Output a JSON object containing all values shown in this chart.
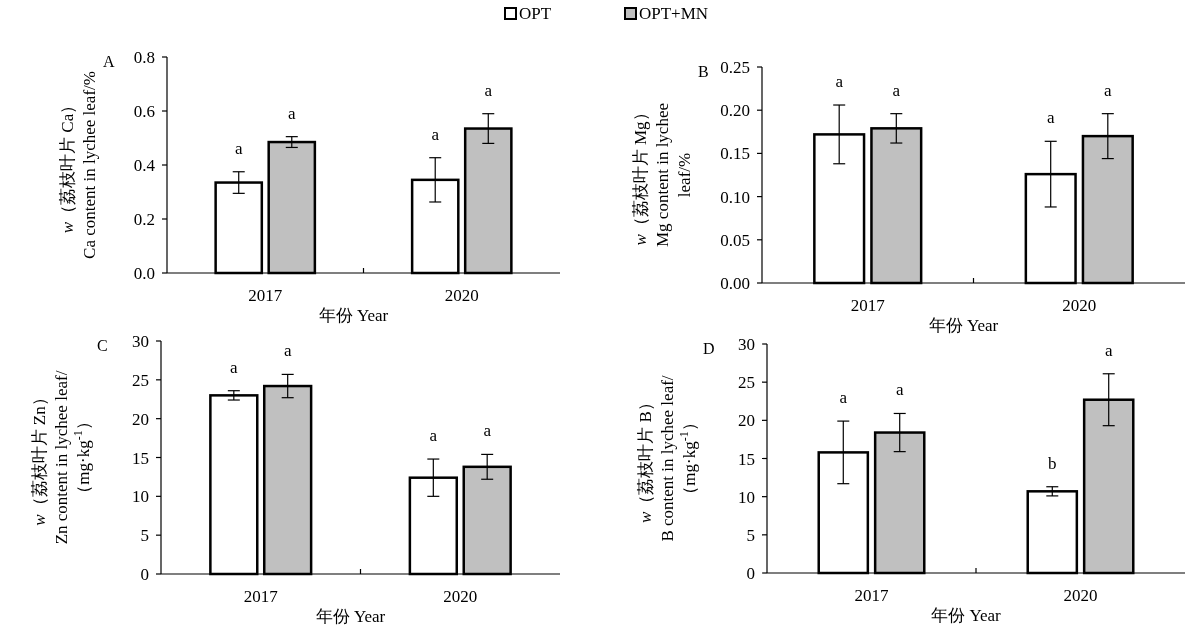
{
  "chart_data": [
    {
      "type": "bar",
      "title": "A",
      "xlabel": "年份 Year",
      "ylabel": "*w*（荔枝叶片 Ca）\nCa content in lychee leaf/%",
      "categories": [
        "2017",
        "2020"
      ],
      "ylim": [
        0,
        0.8
      ],
      "yticks": [
        {
          "value": 0,
          "label": "0.0"
        },
        {
          "value": 0.2,
          "label": "0.2"
        },
        {
          "value": 0.4,
          "label": "0.4"
        },
        {
          "value": 0.6,
          "label": "0.6"
        },
        {
          "value": 0.8,
          "label": "0.8"
        }
      ],
      "legend": "top",
      "series": [
        {
          "name": "OPT",
          "color": "#ffffff",
          "values": [
            0.335,
            0.345
          ],
          "errors": [
            0.04,
            0.082
          ],
          "value_labels": [
            "a",
            "a"
          ]
        },
        {
          "name": "OPT+MN",
          "color": "#c0c0c0",
          "values": [
            0.485,
            0.535
          ],
          "errors": [
            0.02,
            0.055
          ],
          "value_labels": [
            "a",
            "a"
          ]
        }
      ]
    },
    {
      "type": "bar",
      "title": "B",
      "xlabel": "年份 Year",
      "ylabel": "*w*（荔枝叶片 Mg）\nMg content in lychee\nleaf/%",
      "categories": [
        "2017",
        "2020"
      ],
      "ylim": [
        0,
        0.25
      ],
      "yticks": [
        {
          "value": 0,
          "label": "0.00"
        },
        {
          "value": 0.05,
          "label": "0.05"
        },
        {
          "value": 0.1,
          "label": "0.10"
        },
        {
          "value": 0.15,
          "label": "0.15"
        },
        {
          "value": 0.2,
          "label": "0.20"
        },
        {
          "value": 0.25,
          "label": "0.25"
        }
      ],
      "series": [
        {
          "color": "#ffffff",
          "values": [
            0.172,
            0.126
          ],
          "errors": [
            0.034,
            0.038
          ],
          "value_labels": [
            "a",
            "a"
          ]
        },
        {
          "color": "#c0c0c0",
          "values": [
            0.179,
            0.17
          ],
          "errors": [
            0.017,
            0.026
          ],
          "value_labels": [
            "a",
            "a"
          ]
        }
      ]
    },
    {
      "type": "bar",
      "title": "C",
      "xlabel": "年份 Year",
      "ylabel": "*w*（荔枝叶片 Zn）\nZn content in lychee leaf/\n（mg·kg$^{-1}$）",
      "categories": [
        "2017",
        "2020"
      ],
      "ylim": [
        0,
        30
      ],
      "yticks": [
        0,
        5,
        10,
        15,
        20,
        25,
        30
      ],
      "series": [
        {
          "color": "#ffffff",
          "values": [
            23.0,
            12.4
          ],
          "errors": [
            0.6,
            2.4
          ],
          "value_labels": [
            "a",
            "a"
          ]
        },
        {
          "color": "#c0c0c0",
          "values": [
            24.2,
            13.8
          ],
          "errors": [
            1.5,
            1.6
          ],
          "value_labels": [
            "a",
            "a"
          ]
        }
      ]
    },
    {
      "type": "bar",
      "title": "D",
      "xlabel": "年份 Year",
      "ylabel": "*w*（荔枝叶片 B）\nB content in lychee leaf/\n（mg·kg$^{-1}$）",
      "categories": [
        "2017",
        "2020"
      ],
      "ylim": [
        0,
        30
      ],
      "yticks": [
        0,
        5,
        10,
        15,
        20,
        25,
        30
      ],
      "series": [
        {
          "color": "#ffffff",
          "values": [
            15.8,
            10.7
          ],
          "errors": [
            4.1,
            0.6
          ],
          "value_labels": [
            "a",
            "b"
          ]
        },
        {
          "color": "#c0c0c0",
          "values": [
            18.4,
            22.7
          ],
          "errors": [
            2.5,
            3.4
          ],
          "value_labels": [
            "a",
            "a"
          ]
        }
      ]
    }
  ]
}
